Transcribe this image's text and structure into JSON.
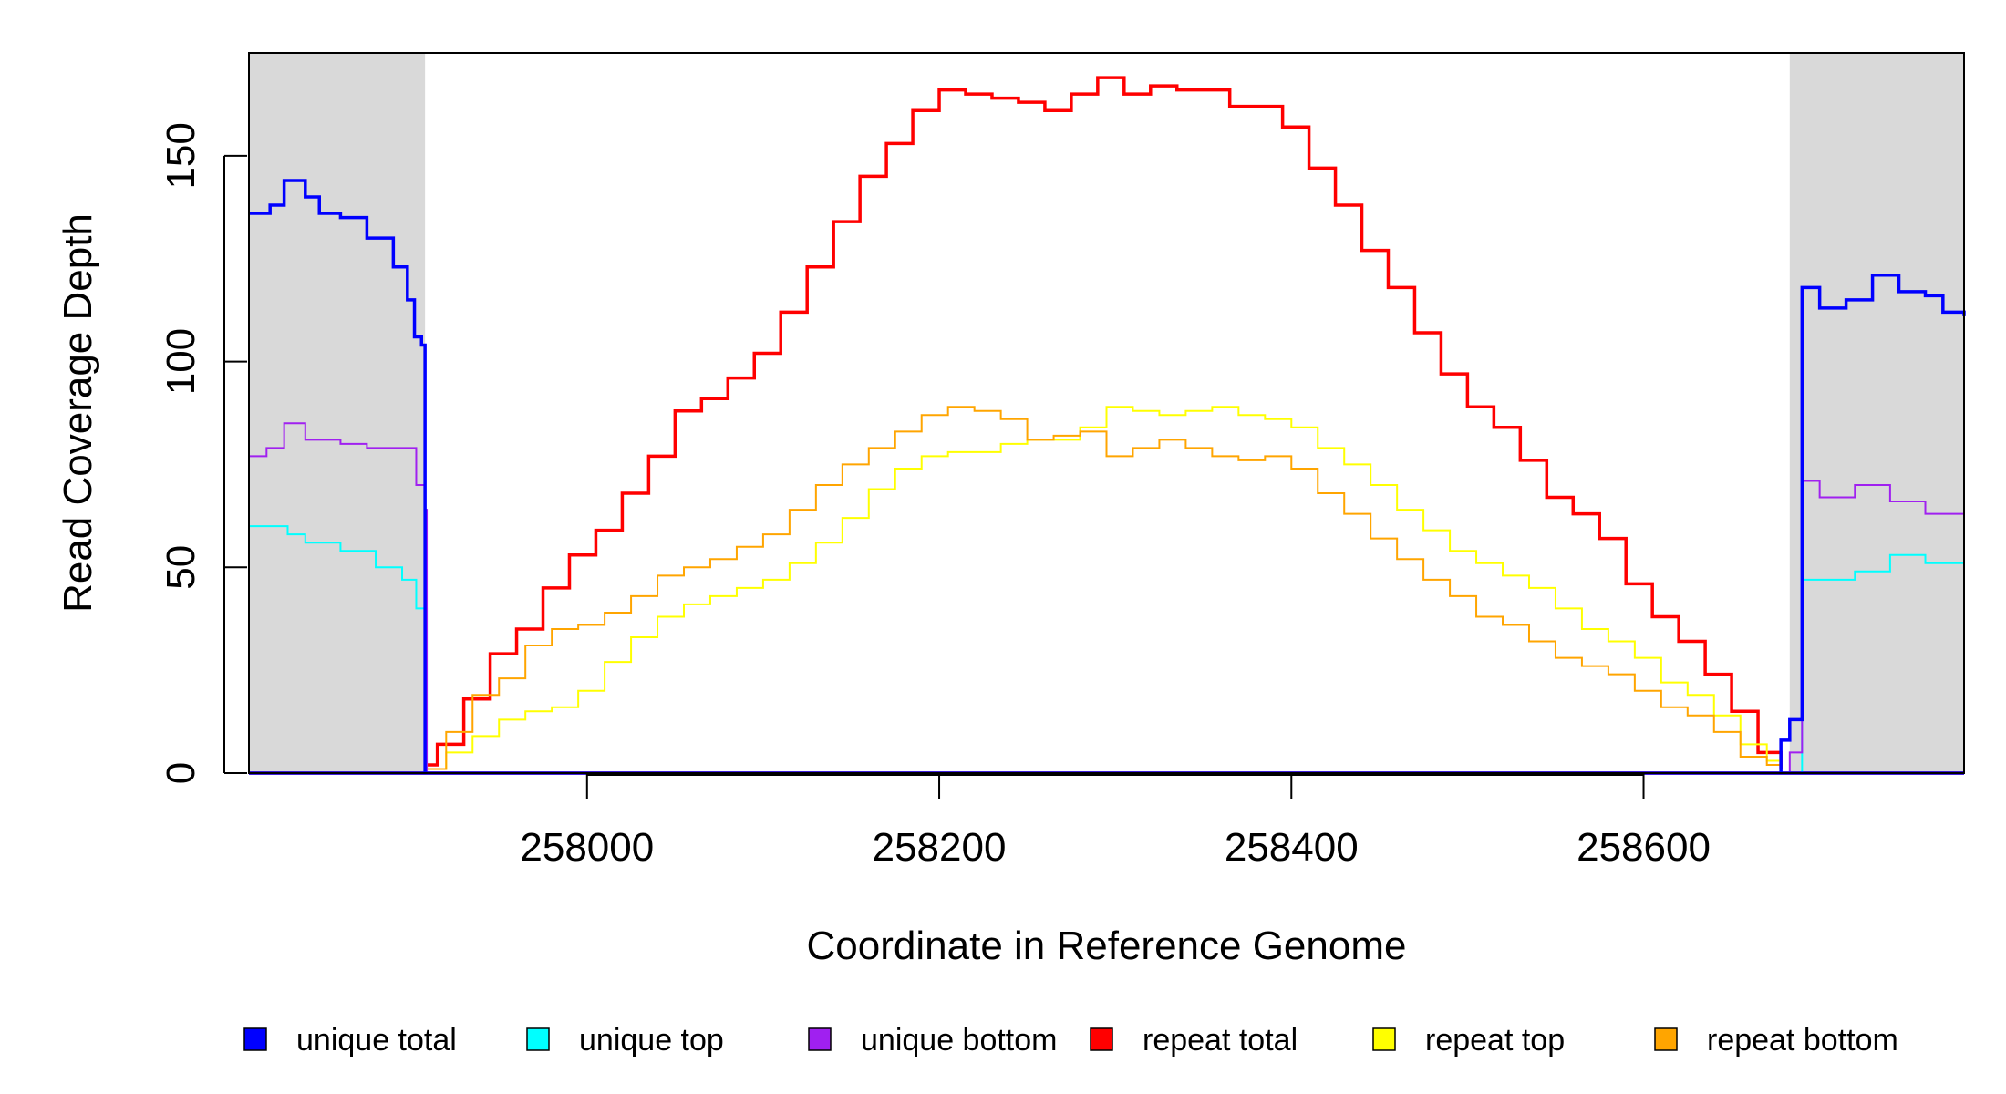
{
  "chart_data": {
    "type": "line",
    "xlabel": "Coordinate in Reference Genome",
    "ylabel": "Read Coverage Depth",
    "xlim": [
      257808,
      258782
    ],
    "ylim": [
      0,
      175
    ],
    "x_ticks": [
      258000,
      258200,
      258400,
      258600
    ],
    "x_tick_labels": [
      "258000",
      "258200",
      "258400",
      "258600"
    ],
    "y_ticks": [
      0,
      50,
      100,
      150
    ],
    "y_tick_labels": [
      "0",
      "50",
      "100",
      "150"
    ],
    "shaded_regions": [
      [
        257808,
        257908
      ],
      [
        258683,
        258782
      ]
    ],
    "shade_color": "#d9d9d9",
    "legend_position": "bottom",
    "series": [
      {
        "name": "unique total",
        "color": "#0000ff",
        "x": [
          257808,
          257820,
          257828,
          257840,
          257848,
          257860,
          257875,
          257890,
          257898,
          257902,
          257906,
          257908,
          257909,
          258675,
          258678,
          258683,
          258690,
          258700,
          258715,
          258730,
          258745,
          258760,
          258770,
          258782
        ],
        "y": [
          136,
          138,
          144,
          140,
          136,
          135,
          130,
          123,
          115,
          106,
          104,
          0,
          0,
          0,
          8,
          13,
          118,
          113,
          115,
          121,
          117,
          116,
          112,
          111
        ]
      },
      {
        "name": "unique top",
        "color": "#00ffff",
        "x": [
          257808,
          257820,
          257830,
          257840,
          257860,
          257880,
          257895,
          257903,
          257908,
          257909,
          258675,
          258683,
          258690,
          258705,
          258720,
          258740,
          258760,
          258782
        ],
        "y": [
          60,
          60,
          58,
          56,
          54,
          50,
          47,
          40,
          40,
          0,
          0,
          0,
          47,
          47,
          49,
          53,
          51,
          49
        ]
      },
      {
        "name": "unique bottom",
        "color": "#a020f0",
        "x": [
          257808,
          257818,
          257828,
          257840,
          257860,
          257875,
          257895,
          257903,
          257908,
          257909,
          258675,
          258683,
          258690,
          258700,
          258720,
          258740,
          258760,
          258782
        ],
        "y": [
          77,
          79,
          85,
          81,
          80,
          79,
          79,
          70,
          64,
          0,
          0,
          5,
          71,
          67,
          70,
          66,
          63,
          62
        ]
      },
      {
        "name": "repeat total",
        "color": "#ff0000",
        "x": [
          257908,
          257915,
          257930,
          257945,
          257960,
          257975,
          257990,
          258005,
          258020,
          258035,
          258050,
          258065,
          258080,
          258095,
          258110,
          258125,
          258140,
          258155,
          258170,
          258185,
          258200,
          258215,
          258230,
          258245,
          258260,
          258275,
          258290,
          258305,
          258320,
          258335,
          258350,
          258365,
          258380,
          258395,
          258410,
          258425,
          258440,
          258455,
          258470,
          258485,
          258500,
          258515,
          258530,
          258545,
          258560,
          258575,
          258590,
          258605,
          258620,
          258635,
          258650,
          258665,
          258678
        ],
        "y": [
          2,
          7,
          18,
          29,
          35,
          45,
          53,
          59,
          68,
          77,
          88,
          91,
          96,
          102,
          112,
          123,
          134,
          145,
          153,
          161,
          166,
          165,
          164,
          163,
          161,
          165,
          169,
          165,
          167,
          166,
          166,
          162,
          162,
          157,
          147,
          138,
          127,
          118,
          107,
          97,
          89,
          84,
          76,
          67,
          63,
          57,
          46,
          38,
          32,
          24,
          15,
          5,
          1
        ]
      },
      {
        "name": "repeat top",
        "color": "#ffff00",
        "x": [
          257908,
          257920,
          257935,
          257950,
          257965,
          257980,
          257995,
          258010,
          258025,
          258040,
          258055,
          258070,
          258085,
          258100,
          258115,
          258130,
          258145,
          258160,
          258175,
          258190,
          258205,
          258220,
          258235,
          258250,
          258265,
          258280,
          258295,
          258310,
          258325,
          258340,
          258355,
          258370,
          258385,
          258400,
          258415,
          258430,
          258445,
          258460,
          258475,
          258490,
          258505,
          258520,
          258535,
          258550,
          258565,
          258580,
          258595,
          258610,
          258625,
          258640,
          258655,
          258670,
          258678
        ],
        "y": [
          1,
          5,
          9,
          13,
          15,
          16,
          20,
          27,
          33,
          38,
          41,
          43,
          45,
          47,
          51,
          56,
          62,
          69,
          74,
          77,
          78,
          78,
          80,
          81,
          81,
          84,
          89,
          88,
          87,
          88,
          89,
          87,
          86,
          84,
          79,
          75,
          70,
          64,
          59,
          54,
          51,
          48,
          45,
          40,
          35,
          32,
          28,
          22,
          19,
          14,
          7,
          3,
          1
        ]
      },
      {
        "name": "repeat bottom",
        "color": "#ffa500",
        "x": [
          257908,
          257920,
          257935,
          257950,
          257965,
          257980,
          257995,
          258010,
          258025,
          258040,
          258055,
          258070,
          258085,
          258100,
          258115,
          258130,
          258145,
          258160,
          258175,
          258190,
          258205,
          258220,
          258235,
          258250,
          258265,
          258280,
          258295,
          258310,
          258325,
          258340,
          258355,
          258370,
          258385,
          258400,
          258415,
          258430,
          258445,
          258460,
          258475,
          258490,
          258505,
          258520,
          258535,
          258550,
          258565,
          258580,
          258595,
          258610,
          258625,
          258640,
          258655,
          258670,
          258678
        ],
        "y": [
          1,
          10,
          19,
          23,
          31,
          35,
          36,
          39,
          43,
          48,
          50,
          52,
          55,
          58,
          64,
          70,
          75,
          79,
          83,
          87,
          89,
          88,
          86,
          81,
          82,
          83,
          77,
          79,
          81,
          79,
          77,
          76,
          77,
          74,
          68,
          63,
          57,
          52,
          47,
          43,
          38,
          36,
          32,
          28,
          26,
          24,
          20,
          16,
          14,
          10,
          4,
          2,
          1
        ]
      }
    ]
  }
}
